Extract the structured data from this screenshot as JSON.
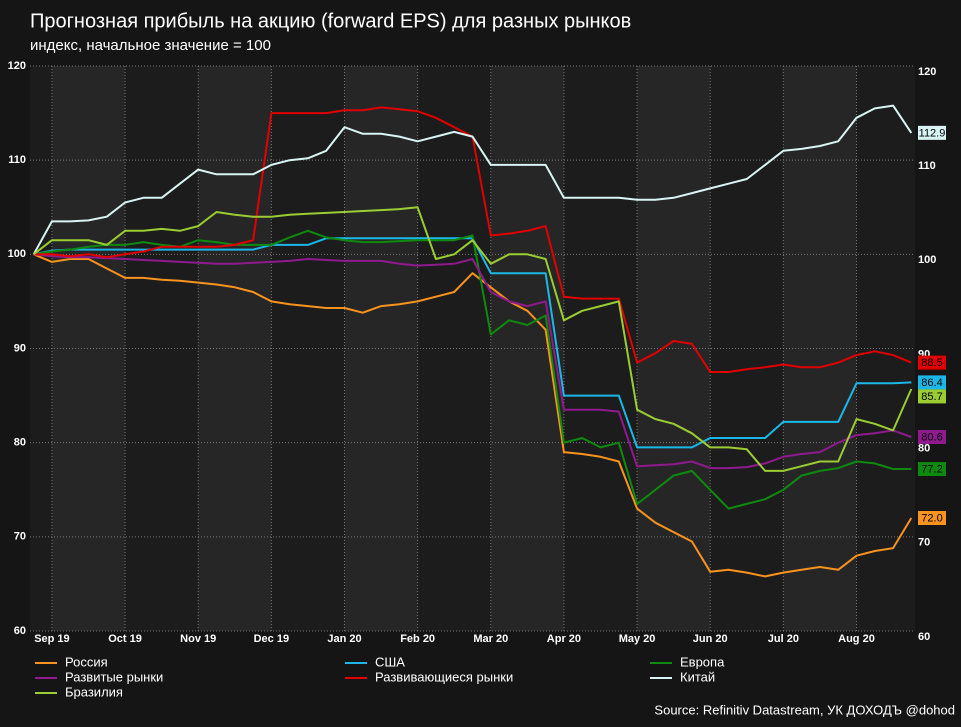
{
  "chart_data": {
    "type": "line",
    "title": "Прогнозная прибыль на акцию (forward EPS) для разных рынков",
    "subtitle": "индекс, начальное значение = 100",
    "source": "Source: Refinitiv Datastream, УК ДОХОДЪ @dohod",
    "x": [
      -0.25,
      0,
      0.25,
      0.5,
      0.75,
      1,
      1.25,
      1.5,
      1.75,
      2,
      2.25,
      2.5,
      2.75,
      3,
      3.25,
      3.5,
      3.75,
      4,
      4.25,
      4.5,
      4.75,
      5,
      5.25,
      5.5,
      5.75,
      6,
      6.25,
      6.5,
      6.75,
      7,
      7.25,
      7.5,
      7.75,
      8,
      8.25,
      8.5,
      8.75,
      9,
      9.25,
      9.5,
      9.75,
      10,
      10.25,
      10.5,
      10.75,
      11,
      11.25,
      11.5,
      11.75
    ],
    "xlim": [
      -0.3,
      11.8
    ],
    "xticks": [
      {
        "value": 0,
        "label": "Sep 19"
      },
      {
        "value": 1,
        "label": "Oct 19"
      },
      {
        "value": 2,
        "label": "Nov 19"
      },
      {
        "value": 3,
        "label": "Dec 19"
      },
      {
        "value": 4,
        "label": "Jan 20"
      },
      {
        "value": 5,
        "label": "Feb 20"
      },
      {
        "value": 6,
        "label": "Mar 20"
      },
      {
        "value": 7,
        "label": "Apr 20"
      },
      {
        "value": 8,
        "label": "May 20"
      },
      {
        "value": 9,
        "label": "Jun 20"
      },
      {
        "value": 10,
        "label": "Jul 20"
      },
      {
        "value": 11,
        "label": "Aug 20"
      }
    ],
    "ylim": [
      60,
      120
    ],
    "yticks": [
      60,
      70,
      80,
      90,
      100,
      110,
      120
    ],
    "grid": true,
    "series": [
      {
        "name": "Россия",
        "color": "#f7931e",
        "end_label": "72.0",
        "values": [
          100,
          99.2,
          99.5,
          99.5,
          98.5,
          97.5,
          97.5,
          97.3,
          97.2,
          97,
          96.8,
          96.5,
          96,
          95,
          94.7,
          94.5,
          94.3,
          94.3,
          93.8,
          94.5,
          94.7,
          95,
          95.5,
          96,
          98,
          96.5,
          95,
          94,
          92,
          79,
          78.8,
          78.5,
          78,
          73,
          71.5,
          70.5,
          69.5,
          66.3,
          66.5,
          66.2,
          65.8,
          66.2,
          66.5,
          66.8,
          66.5,
          68,
          68.5,
          68.8,
          72
        ]
      },
      {
        "name": "США",
        "color": "#1ab8e8",
        "end_label": "86.4",
        "values": [
          100,
          100.4,
          100.5,
          100.5,
          100.5,
          100.5,
          100.5,
          100.5,
          100.5,
          100.5,
          100.5,
          100.5,
          100.5,
          101,
          101,
          101,
          101.7,
          101.7,
          101.7,
          101.7,
          101.7,
          101.7,
          101.7,
          101.7,
          101.7,
          98,
          98,
          98,
          98,
          85,
          85,
          85,
          85,
          79.5,
          79.5,
          79.5,
          79.5,
          80.5,
          80.5,
          80.5,
          80.5,
          82.2,
          82.2,
          82.2,
          82.2,
          86.3,
          86.3,
          86.3,
          86.4
        ]
      },
      {
        "name": "Европа",
        "color": "#0e8a0e",
        "end_label": "77.2",
        "values": [
          100,
          100.3,
          100.5,
          100.8,
          101,
          101,
          101.3,
          101,
          100.8,
          101.5,
          101.3,
          101,
          101,
          101,
          101.8,
          102.5,
          101.8,
          101.5,
          101.3,
          101.3,
          101.4,
          101.5,
          101.5,
          101.5,
          102,
          91.5,
          93,
          92.5,
          93.5,
          80,
          80.5,
          79.5,
          80,
          73.5,
          75,
          76.5,
          77,
          75,
          73,
          73.5,
          74,
          75,
          76.5,
          77,
          77.3,
          78,
          77.8,
          77.2,
          77.2
        ]
      },
      {
        "name": "Развитые рынки",
        "color": "#8e1a8e",
        "end_label": "80.6",
        "values": [
          100,
          99.8,
          99.7,
          99.7,
          99.6,
          99.5,
          99.4,
          99.3,
          99.2,
          99.1,
          99,
          99,
          99.1,
          99.2,
          99.3,
          99.5,
          99.4,
          99.3,
          99.3,
          99.3,
          99,
          98.8,
          98.9,
          99,
          99.5,
          96,
          95,
          94.5,
          95,
          83.5,
          83.5,
          83.5,
          83.3,
          77.5,
          77.6,
          77.7,
          78,
          77.3,
          77.3,
          77.4,
          77.8,
          78.5,
          78.8,
          79,
          80,
          80.8,
          81,
          81.3,
          80.6
        ]
      },
      {
        "name": "Развивающиеся рынки",
        "color": "#e00000",
        "end_label": "88.5",
        "values": [
          100,
          100,
          99.8,
          100,
          99.7,
          100,
          100.3,
          100.8,
          100.8,
          100.8,
          100.8,
          101,
          101.5,
          115,
          115,
          115,
          115,
          115.3,
          115.3,
          115.6,
          115.4,
          115.2,
          114.5,
          113.5,
          112.5,
          102,
          102.2,
          102.5,
          103,
          95.5,
          95.3,
          95.3,
          95.3,
          88.5,
          89.5,
          90.8,
          90.5,
          87.5,
          87.5,
          87.8,
          88,
          88.3,
          88,
          88,
          88.5,
          89.3,
          89.7,
          89.3,
          88.5
        ]
      },
      {
        "name": "Китай",
        "color": "#d8f4f4",
        "end_label": "112.9",
        "values": [
          100,
          103.5,
          103.5,
          103.6,
          104,
          105.5,
          106,
          106,
          107.5,
          109,
          108.5,
          108.5,
          108.5,
          109.5,
          110,
          110.2,
          111,
          113.5,
          112.8,
          112.8,
          112.5,
          112,
          112.5,
          113,
          112.5,
          109.5,
          109.5,
          109.5,
          109.5,
          106,
          106,
          106,
          106,
          105.8,
          105.8,
          106,
          106.5,
          107,
          107.5,
          108,
          109.5,
          111,
          111.2,
          111.5,
          112,
          114.5,
          115.5,
          115.8,
          112.9
        ]
      },
      {
        "name": "Бразилия",
        "color": "#9acd32",
        "end_label": "85.7",
        "values": [
          100,
          101.5,
          101.5,
          101.5,
          101,
          102.5,
          102.5,
          102.7,
          102.5,
          103,
          104.5,
          104.2,
          104,
          104,
          104.2,
          104.3,
          104.4,
          104.5,
          104.6,
          104.7,
          104.8,
          105,
          99.5,
          100,
          101.5,
          99,
          100,
          100,
          99.5,
          93,
          94,
          94.5,
          95,
          83.5,
          82.5,
          82,
          81,
          79.5,
          79.5,
          79.3,
          77,
          77,
          77.5,
          78,
          78,
          82.5,
          82,
          81.3,
          85.7
        ]
      }
    ]
  }
}
